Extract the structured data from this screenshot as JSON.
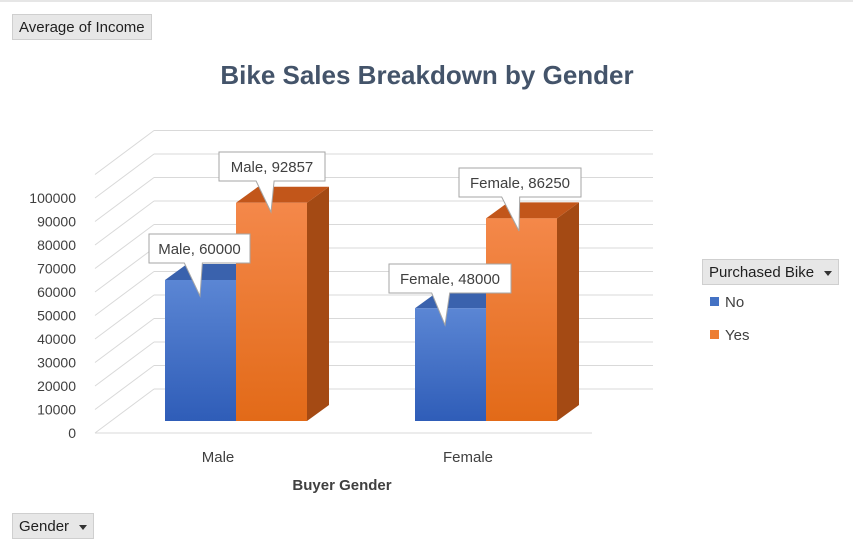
{
  "pivot": {
    "value_field": "Average of Income",
    "axis_field": "Gender",
    "legend_field": "Purchased Bike"
  },
  "legend": {
    "items": [
      {
        "label": "No",
        "color": "#4472c4"
      },
      {
        "label": "Yes",
        "color": "#ed7d31"
      }
    ]
  },
  "chart_data": {
    "type": "bar",
    "title": "Bike Sales Breakdown by Gender",
    "xlabel": "Buyer Gender",
    "ylabel": "",
    "categories": [
      "Male",
      "Female"
    ],
    "series": [
      {
        "name": "No",
        "values": [
          60000,
          48000
        ],
        "color": "#4472c4"
      },
      {
        "name": "Yes",
        "values": [
          92857,
          86250
        ],
        "color": "#ed7d31"
      }
    ],
    "ylim": [
      0,
      100000
    ],
    "yticks": [
      "0",
      "10000",
      "20000",
      "30000",
      "40000",
      "50000",
      "60000",
      "70000",
      "80000",
      "90000",
      "100000"
    ],
    "data_labels": [
      [
        "Male, 60000",
        "Female, 48000"
      ],
      [
        "Male, 92857",
        "Female, 86250"
      ]
    ],
    "grid": true,
    "legend_position": "right",
    "style": "3d-clustered-column"
  }
}
